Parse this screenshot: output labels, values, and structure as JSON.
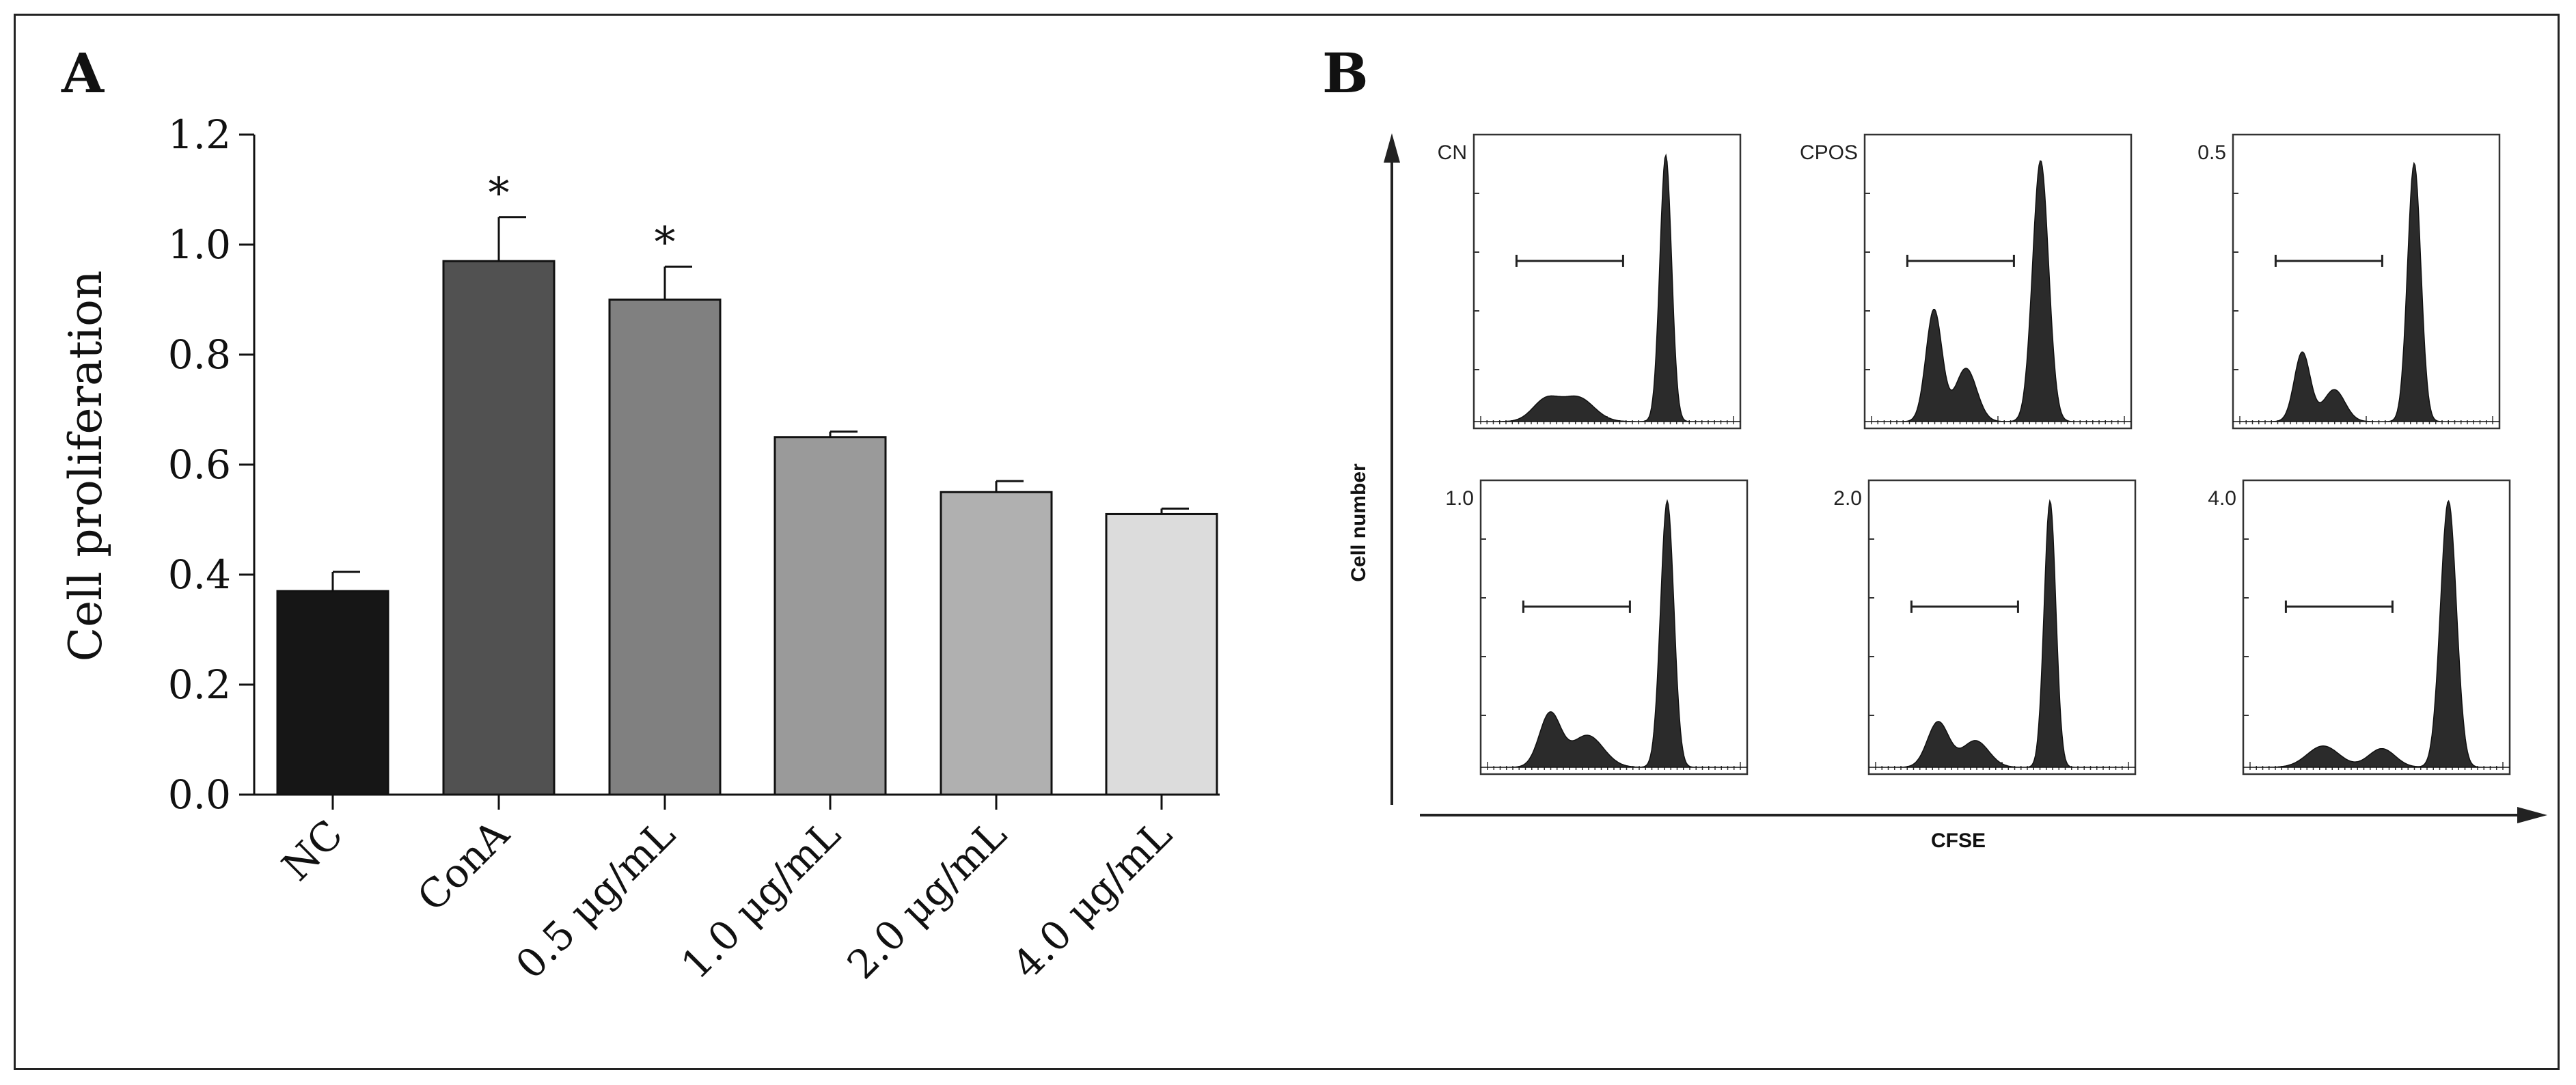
{
  "panel_a_label": "A",
  "panel_b_label": "B",
  "chart_data": [
    {
      "type": "bar",
      "title": "",
      "xlabel": "",
      "ylabel": "Cell proliferation",
      "ylim": [
        0,
        1.2
      ],
      "yticks": [
        "0.0",
        "0.2",
        "0.4",
        "0.6",
        "0.8",
        "1.0",
        "1.2"
      ],
      "categories": [
        "NC",
        "ConA",
        "0.5 μg/mL",
        "1.0 μg/mL",
        "2.0 μg/mL",
        "4.0 μg/mL"
      ],
      "values": [
        0.37,
        0.97,
        0.9,
        0.65,
        0.55,
        0.51
      ],
      "errors": [
        0.035,
        0.08,
        0.06,
        0.01,
        0.02,
        0.01
      ],
      "significance": [
        "",
        "*",
        "*",
        "",
        "",
        ""
      ],
      "bar_colors": [
        "#161616",
        "#515151",
        "#808080",
        "#9a9a9a",
        "#b0b0b0",
        "#dcdcdc"
      ]
    },
    {
      "type": "histogram-grid",
      "xlabel": "CFSE",
      "ylabel": "Cell number",
      "panels": [
        {
          "label": "CN",
          "peaks": [
            [
              0.27,
              0.08,
              0.05
            ],
            [
              0.39,
              0.09,
              0.06
            ],
            [
              0.72,
              1.0,
              0.022
            ]
          ]
        },
        {
          "label": "CPOS",
          "peaks": [
            [
              0.26,
              0.42,
              0.03
            ],
            [
              0.38,
              0.2,
              0.04
            ],
            [
              0.66,
              0.98,
              0.03
            ]
          ]
        },
        {
          "label": "0.5",
          "peaks": [
            [
              0.26,
              0.26,
              0.03
            ],
            [
              0.38,
              0.12,
              0.04
            ],
            [
              0.68,
              0.97,
              0.025
            ]
          ]
        },
        {
          "label": "1.0",
          "peaks": [
            [
              0.26,
              0.2,
              0.04
            ],
            [
              0.4,
              0.12,
              0.06
            ],
            [
              0.7,
              1.0,
              0.025
            ]
          ]
        },
        {
          "label": "2.0",
          "peaks": [
            [
              0.26,
              0.17,
              0.04
            ],
            [
              0.4,
              0.1,
              0.05
            ],
            [
              0.68,
              1.0,
              0.022
            ]
          ]
        },
        {
          "label": "4.0",
          "peaks": [
            [
              0.3,
              0.08,
              0.06
            ],
            [
              0.52,
              0.07,
              0.05
            ],
            [
              0.77,
              1.0,
              0.03
            ]
          ]
        }
      ]
    }
  ]
}
